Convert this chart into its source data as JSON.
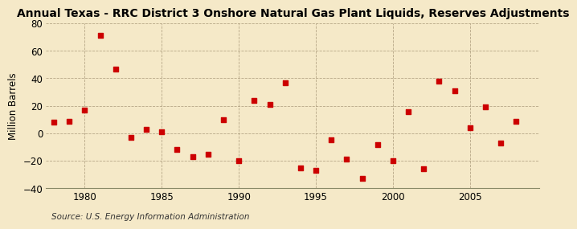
{
  "title": "Annual Texas - RRC District 3 Onshore Natural Gas Plant Liquids, Reserves Adjustments",
  "ylabel": "Million Barrels",
  "source": "Source: U.S. Energy Information Administration",
  "background_color": "#f5e9c8",
  "plot_background_color": "#f5e9c8",
  "marker_color": "#cc0000",
  "years": [
    1978,
    1979,
    1980,
    1981,
    1982,
    1983,
    1984,
    1985,
    1986,
    1987,
    1988,
    1989,
    1990,
    1991,
    1992,
    1993,
    1994,
    1995,
    1996,
    1997,
    1998,
    1999,
    2000,
    2001,
    2002,
    2003,
    2004,
    2005,
    2006,
    2007,
    2008
  ],
  "values": [
    8,
    9,
    17,
    71,
    47,
    -3,
    3,
    1,
    -12,
    -17,
    -15,
    10,
    -20,
    24,
    21,
    37,
    -25,
    -27,
    -5,
    -19,
    -33,
    -8,
    -20,
    16,
    -26,
    38,
    31,
    4,
    19,
    -7,
    9
  ],
  "xlim": [
    1977.5,
    2009.5
  ],
  "ylim": [
    -40,
    80
  ],
  "yticks": [
    -40,
    -20,
    0,
    20,
    40,
    60,
    80
  ],
  "xticks": [
    1980,
    1985,
    1990,
    1995,
    2000,
    2005
  ],
  "grid_color": "#b0a080",
  "title_fontsize": 10,
  "label_fontsize": 8.5,
  "tick_fontsize": 8.5,
  "source_fontsize": 7.5
}
